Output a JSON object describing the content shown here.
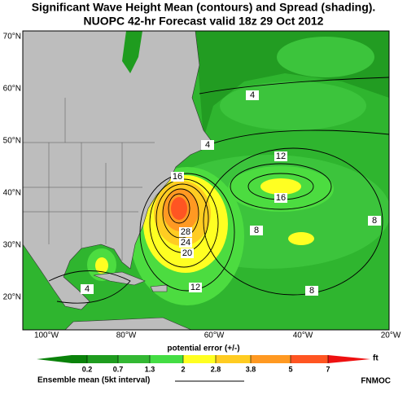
{
  "header": {
    "title": [
      "Significant Wave Height Mean (contours) and Spread (shading).",
      "NUOPC 42-hr Forecast valid 18z 29 Oct 2012"
    ]
  },
  "map": {
    "lat_labels": [
      "70°N",
      "60°N",
      "50°N",
      "40°N",
      "30°N",
      "20°N"
    ],
    "lon_labels": [
      "100°W",
      "80°W",
      "60°W",
      "40°W",
      "20°W"
    ],
    "contour_labels": [
      4,
      4,
      12,
      16,
      16,
      28,
      24,
      20,
      12,
      8,
      8,
      8,
      4
    ]
  },
  "colorbar": {
    "label": "potential error (+/-)",
    "ticks": [
      0.2,
      0.7,
      1.3,
      2,
      2.8,
      3.8,
      5,
      7
    ],
    "unit": "ft",
    "colors": [
      "#0a820a",
      "#1f9c1f",
      "#33b833",
      "#44dd44",
      "#ffff22",
      "#ffcc22",
      "#ff9922",
      "#ff5522",
      "#ee1111"
    ]
  },
  "legend": {
    "text": "Ensemble mean (5kt interval)"
  },
  "credit": "FNMOC"
}
